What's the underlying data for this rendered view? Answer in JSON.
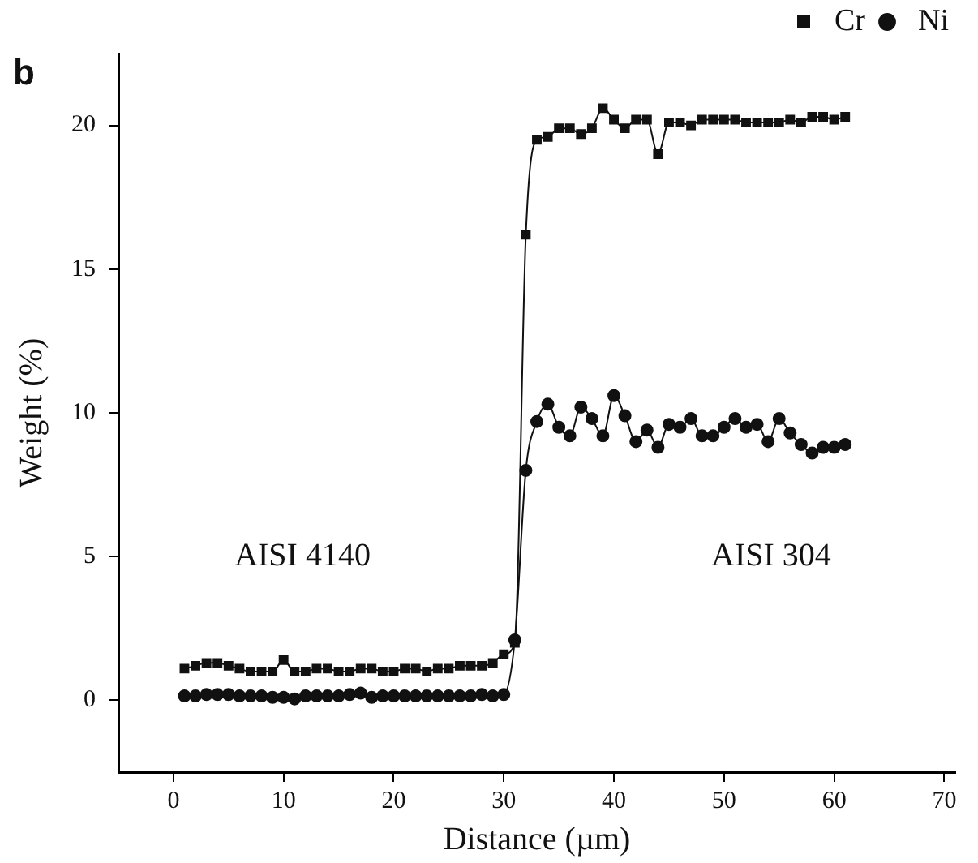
{
  "chart_data": {
    "type": "line",
    "title": "b",
    "xlabel": "Distance (µm)",
    "ylabel": "Weight (%)",
    "x": [
      1,
      2,
      3,
      4,
      5,
      6,
      7,
      8,
      9,
      10,
      11,
      12,
      13,
      14,
      15,
      16,
      17,
      18,
      19,
      20,
      21,
      22,
      23,
      24,
      25,
      26,
      27,
      28,
      29,
      30,
      31,
      32,
      33,
      34,
      35,
      36,
      37,
      38,
      39,
      40,
      41,
      42,
      43,
      44,
      45,
      46,
      47,
      48,
      49,
      50,
      51,
      52,
      53,
      54,
      55,
      56,
      57,
      58,
      59,
      60,
      61
    ],
    "series": [
      {
        "name": "Cr",
        "color": "#111111",
        "marker": "square",
        "values": [
          1.1,
          1.2,
          1.3,
          1.3,
          1.2,
          1.1,
          1.0,
          1.0,
          1.0,
          1.4,
          1.0,
          1.0,
          1.1,
          1.1,
          1.0,
          1.0,
          1.1,
          1.1,
          1.0,
          1.0,
          1.1,
          1.1,
          1.0,
          1.1,
          1.1,
          1.2,
          1.2,
          1.2,
          1.3,
          1.6,
          2.0,
          16.2,
          19.5,
          19.6,
          19.9,
          19.9,
          19.7,
          19.9,
          20.6,
          20.2,
          19.9,
          20.2,
          20.2,
          19.0,
          20.1,
          20.1,
          20.0,
          20.2,
          20.2,
          20.2,
          20.2,
          20.1,
          20.1,
          20.1,
          20.1,
          20.2,
          20.1,
          20.3,
          20.3,
          20.2,
          20.3
        ]
      },
      {
        "name": "Ni",
        "color": "#111111",
        "marker": "circle",
        "values": [
          0.15,
          0.15,
          0.2,
          0.2,
          0.2,
          0.15,
          0.15,
          0.15,
          0.1,
          0.1,
          0.05,
          0.15,
          0.15,
          0.15,
          0.15,
          0.2,
          0.25,
          0.1,
          0.15,
          0.15,
          0.15,
          0.15,
          0.15,
          0.15,
          0.15,
          0.15,
          0.15,
          0.2,
          0.15,
          0.2,
          2.1,
          8.0,
          9.7,
          10.3,
          9.5,
          9.2,
          10.2,
          9.8,
          9.2,
          10.6,
          9.9,
          9.0,
          9.4,
          8.8,
          9.6,
          9.5,
          9.8,
          9.2,
          9.2,
          9.5,
          9.8,
          9.5,
          9.6,
          9.0,
          9.8,
          9.3,
          8.9,
          8.6,
          8.8,
          8.8,
          8.9
        ]
      }
    ],
    "xlim": [
      -5,
      71
    ],
    "xticks": [
      0,
      10,
      20,
      30,
      40,
      50,
      60,
      70
    ],
    "ylim": [
      -2.5,
      22.5
    ],
    "yticks": [
      0,
      5,
      10,
      15,
      20
    ],
    "grid": false,
    "legend": "top right",
    "line_style": "solid",
    "annotations": [
      "AISI 4140",
      "AISI 304"
    ]
  }
}
